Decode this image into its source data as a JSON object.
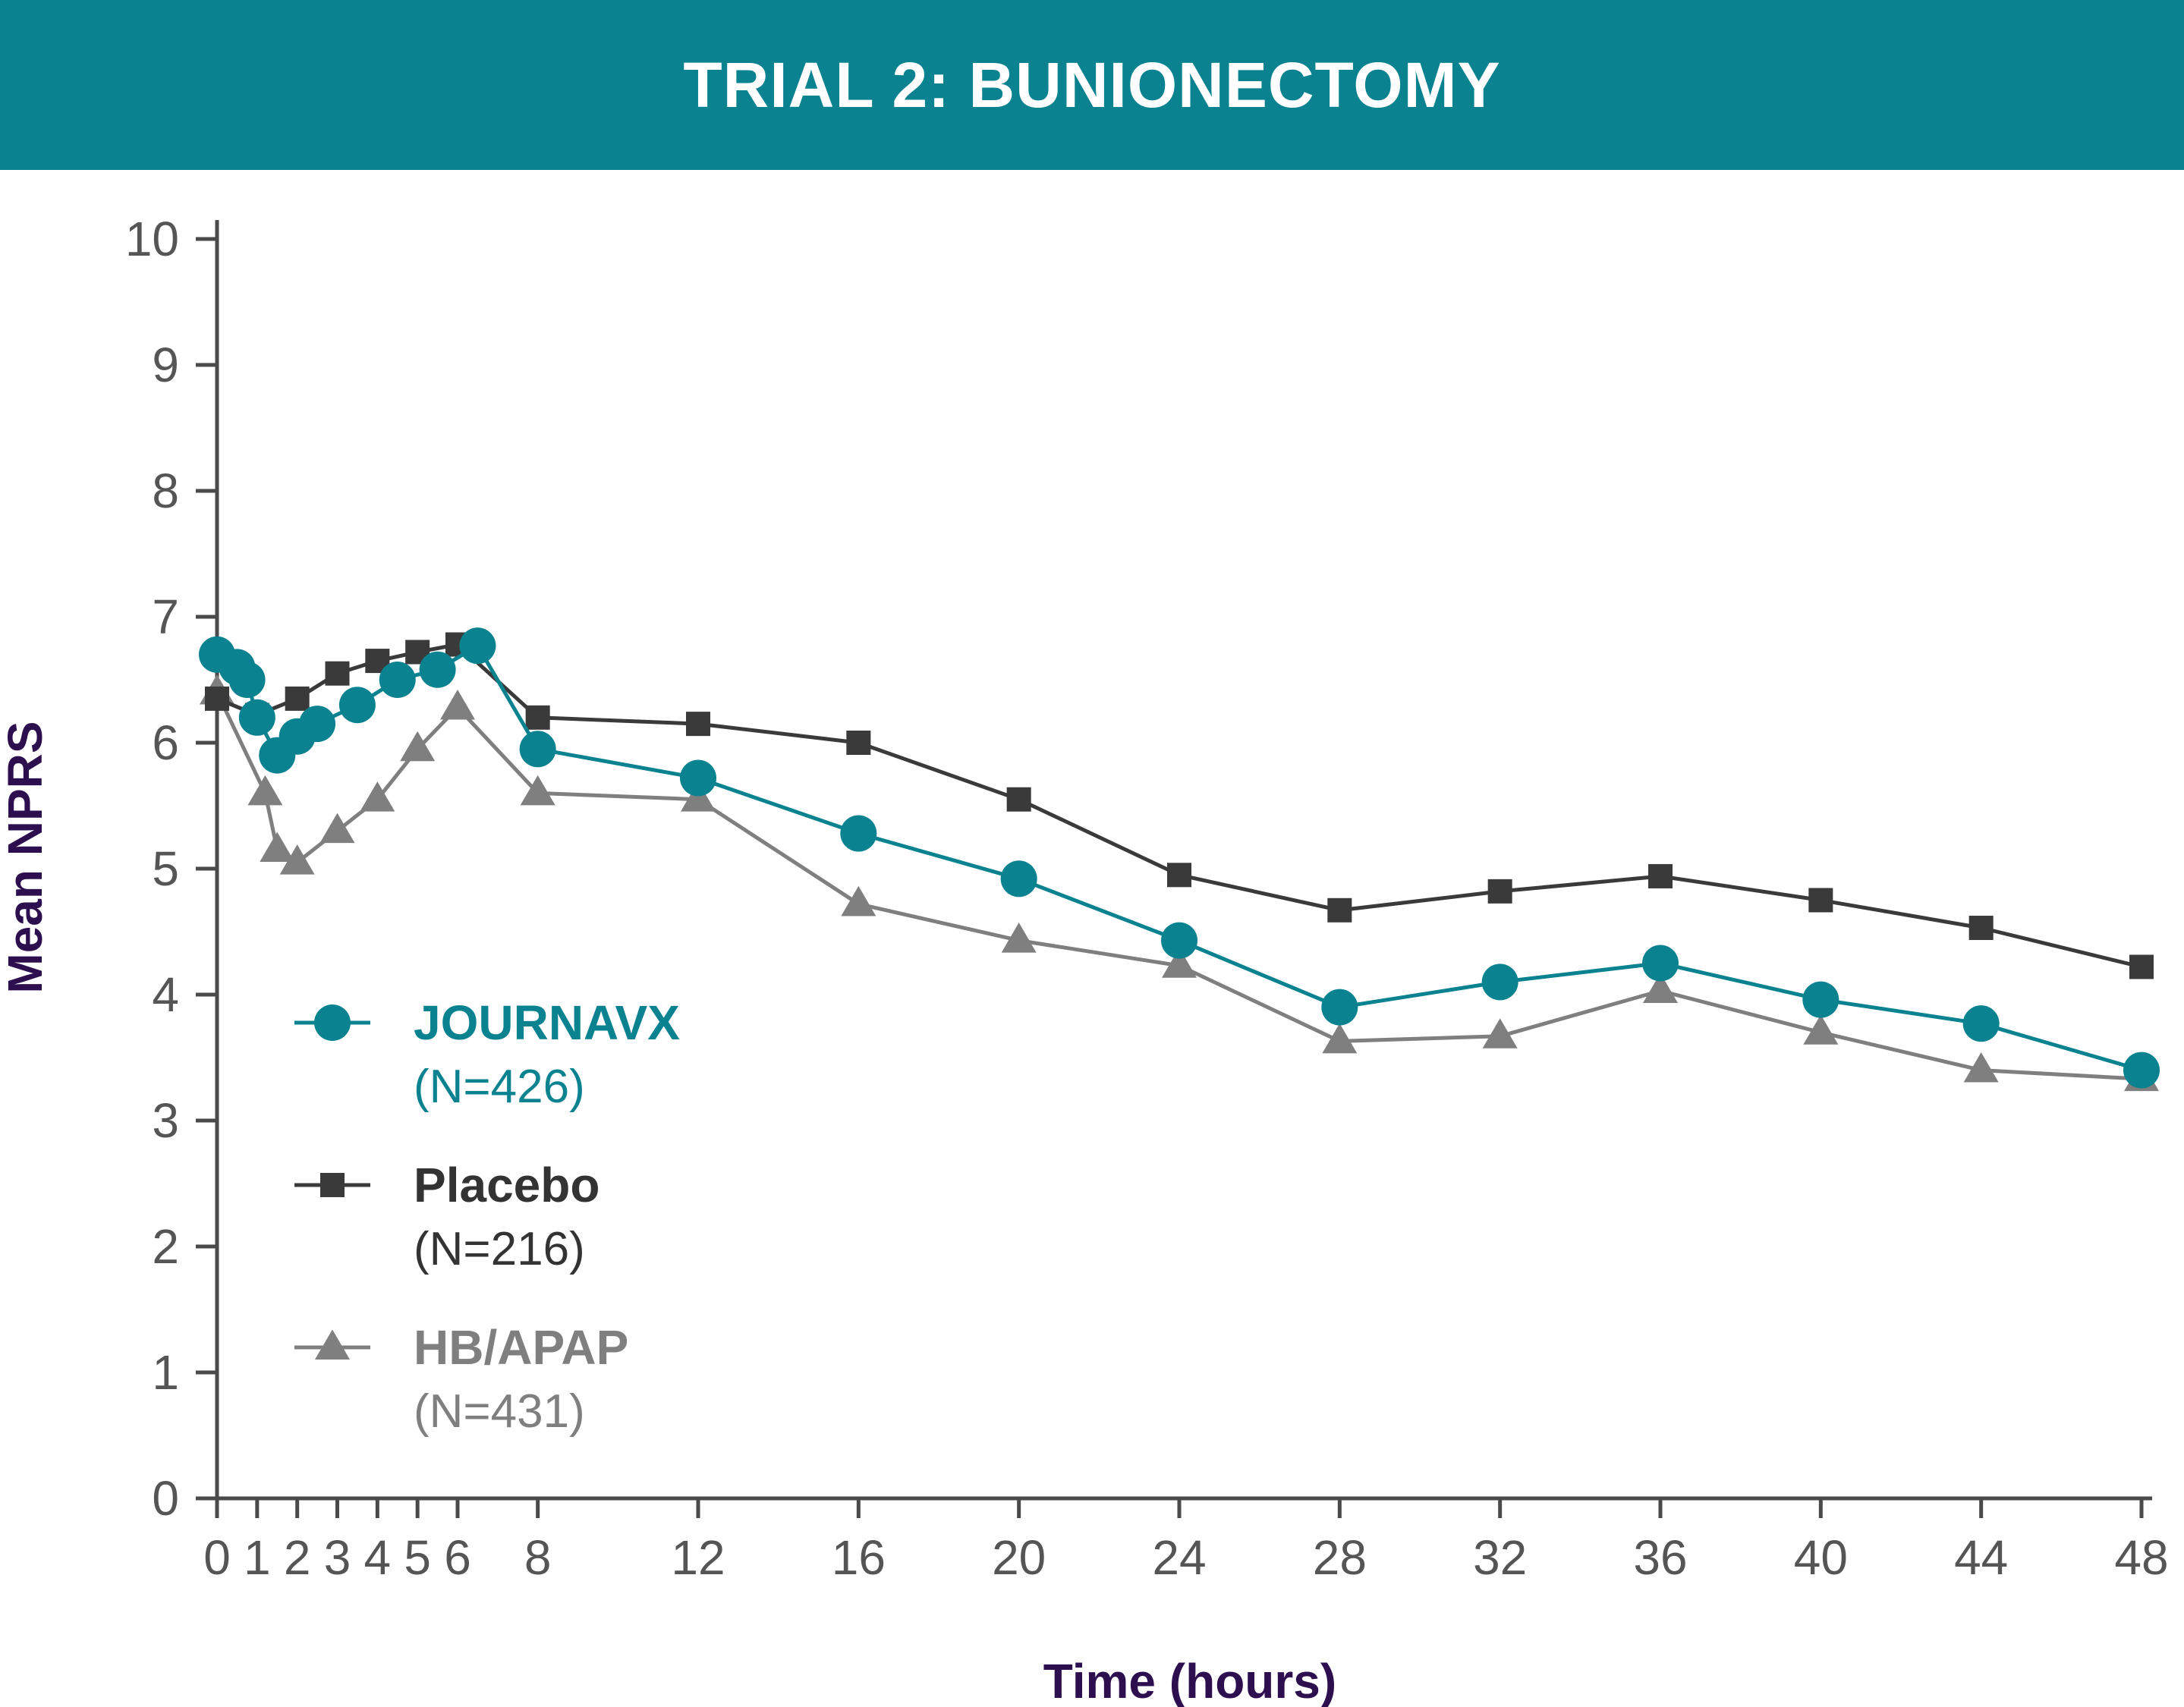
{
  "header": {
    "title": "TRIAL 2: BUNIONECTOMY"
  },
  "colors": {
    "banner": "#0b8290",
    "axis_title": "#2d0e4e",
    "axis": "#4a4a4a",
    "tick_text": "#555555"
  },
  "chart_data": {
    "type": "line",
    "title": "TRIAL 2: BUNIONECTOMY",
    "xlabel": "Time (hours)",
    "ylabel": "Mean NPRS",
    "xlim": [
      0,
      48
    ],
    "ylim": [
      0,
      10
    ],
    "grid": false,
    "legend_position": "left-middle",
    "x_ticks": [
      0,
      1,
      2,
      3,
      4,
      5,
      6,
      8,
      12,
      16,
      20,
      24,
      28,
      32,
      36,
      40,
      44,
      48
    ],
    "x_tick_labels": [
      "0",
      "1",
      "2",
      "3",
      "4",
      "5",
      "6",
      "8",
      "12",
      "16",
      "20",
      "24",
      "28",
      "32",
      "36",
      "40",
      "44",
      "48"
    ],
    "y_ticks": [
      0,
      1,
      2,
      3,
      4,
      5,
      6,
      7,
      8,
      9,
      10
    ],
    "y_tick_labels": [
      "0",
      "1",
      "2",
      "3",
      "4",
      "5",
      "6",
      "7",
      "8",
      "9",
      "10"
    ],
    "series": [
      {
        "name": "JOURNAVX",
        "n_label": "(N=426)",
        "marker": "circle",
        "color": "#0b8290",
        "points": [
          [
            0,
            6.7
          ],
          [
            0.5,
            6.6
          ],
          [
            0.75,
            6.5
          ],
          [
            1,
            6.2
          ],
          [
            1.5,
            5.9
          ],
          [
            2,
            6.05
          ],
          [
            2.5,
            6.15
          ],
          [
            3.5,
            6.3
          ],
          [
            4.5,
            6.5
          ],
          [
            5.5,
            6.58
          ],
          [
            6.5,
            6.77
          ],
          [
            8,
            5.95
          ],
          [
            12,
            5.72
          ],
          [
            16,
            5.28
          ],
          [
            20,
            4.92
          ],
          [
            24,
            4.43
          ],
          [
            28,
            3.9
          ],
          [
            32,
            4.1
          ],
          [
            36,
            4.25
          ],
          [
            40,
            3.96
          ],
          [
            44,
            3.77
          ],
          [
            48,
            3.4
          ]
        ]
      },
      {
        "name": "Placebo",
        "n_label": "(N=216)",
        "marker": "square",
        "color": "#3a3a3a",
        "points": [
          [
            0,
            6.35
          ],
          [
            1,
            6.22
          ],
          [
            2,
            6.35
          ],
          [
            3,
            6.55
          ],
          [
            4,
            6.65
          ],
          [
            5,
            6.72
          ],
          [
            6,
            6.78
          ],
          [
            8,
            6.2
          ],
          [
            12,
            6.15
          ],
          [
            16,
            6.0
          ],
          [
            20,
            5.55
          ],
          [
            24,
            4.95
          ],
          [
            28,
            4.67
          ],
          [
            32,
            4.82
          ],
          [
            36,
            4.94
          ],
          [
            40,
            4.75
          ],
          [
            44,
            4.53
          ],
          [
            48,
            4.22
          ]
        ]
      },
      {
        "name": "HB/APAP",
        "n_label": "(N=431)",
        "marker": "triangle",
        "color": "#7f7f7f",
        "points": [
          [
            0,
            6.4
          ],
          [
            1.2,
            5.6
          ],
          [
            1.5,
            5.15
          ],
          [
            2,
            5.05
          ],
          [
            3,
            5.3
          ],
          [
            4,
            5.55
          ],
          [
            5,
            5.95
          ],
          [
            6,
            6.28
          ],
          [
            8,
            5.6
          ],
          [
            12,
            5.55
          ],
          [
            16,
            4.72
          ],
          [
            20,
            4.43
          ],
          [
            24,
            4.23
          ],
          [
            28,
            3.63
          ],
          [
            32,
            3.67
          ],
          [
            36,
            4.03
          ],
          [
            40,
            3.7
          ],
          [
            44,
            3.4
          ],
          [
            48,
            3.33
          ]
        ]
      }
    ]
  }
}
